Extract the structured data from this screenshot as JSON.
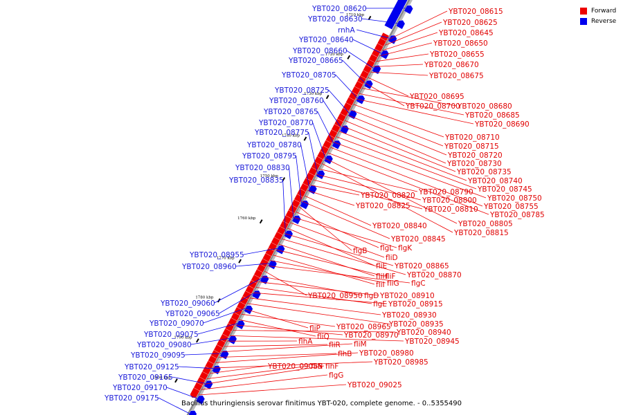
{
  "caption": "Bacillus thuringiensis serovar finitimus YBT-020, complete genome. - 0..5355490",
  "legend": [
    {
      "label": "Forward",
      "color": "#ee0000"
    },
    {
      "label": "Reverse",
      "color": "#0000ee"
    }
  ],
  "colors": {
    "forward": "#ee0000",
    "reverse": "#0000ee",
    "backbone": "#888888"
  },
  "ticks": [
    "1710 kbp",
    "1720 kbp",
    "1730 kbp",
    "1740 kbp",
    "1750 kbp",
    "1760 kbp",
    "1770 kbp",
    "1780 kbp",
    "1790 kbp",
    "1800 kbp"
  ],
  "forward_labels": [
    "YBT020_08615",
    "YBT020_08625",
    "YBT020_08645",
    "YBT020_08650",
    "YBT020_08655",
    "YBT020_08670",
    "YBT020_08675",
    "YBT020_08695",
    "YBT020_08700",
    "YBT020_08680",
    "YBT020_08685",
    "YBT020_08690",
    "YBT020_08710",
    "YBT020_08715",
    "YBT020_08720",
    "YBT020_08730",
    "YBT020_08735",
    "YBT020_08740",
    "YBT020_08745",
    "YBT020_08750",
    "YBT020_08755",
    "YBT020_08785",
    "YBT020_08805",
    "YBT020_08815",
    "YBT020_08790",
    "YBT020_08800",
    "YBT020_08810",
    "YBT020_08820",
    "YBT020_08825",
    "YBT020_08840",
    "YBT020_08845",
    "flgB",
    "flgL",
    "flgK",
    "fliD",
    "fliE",
    "YBT020_08865",
    "YBT020_08870",
    "fliH",
    "fliF",
    "fliI",
    "fliG",
    "flgC",
    "YBT020_08950",
    "flgD",
    "YBT020_08910",
    "flgE",
    "YBT020_08915",
    "YBT020_08930",
    "YBT020_08935",
    "fliP",
    "YBT020_08965",
    "fliQ",
    "YBT020_08970",
    "YBT020_08940",
    "YBT020_08945",
    "flhA",
    "fliR",
    "fliM",
    "flhB",
    "YBT020_08980",
    "YBT020_08985",
    "YBT020_09055",
    "fliN",
    "flhF",
    "flgG",
    "YBT020_09025"
  ],
  "reverse_labels": [
    "YBT020_08620",
    "YBT020_08630",
    "rnhA",
    "YBT020_08640",
    "YBT020_08660",
    "YBT020_08665",
    "YBT020_08705",
    "YBT020_08725",
    "YBT020_08760",
    "YBT020_08765",
    "YBT020_08770",
    "YBT020_08775",
    "YBT020_08780",
    "YBT020_08795",
    "YBT020_08830",
    "YBT020_08835",
    "YBT020_08955",
    "YBT020_08960",
    "YBT020_09060",
    "YBT020_09065",
    "YBT020_09070",
    "YBT020_09075",
    "YBT020_09080",
    "YBT020_09095",
    "YBT020_09125",
    "YBT020_09165",
    "YBT020_09170",
    "YBT020_09175"
  ]
}
